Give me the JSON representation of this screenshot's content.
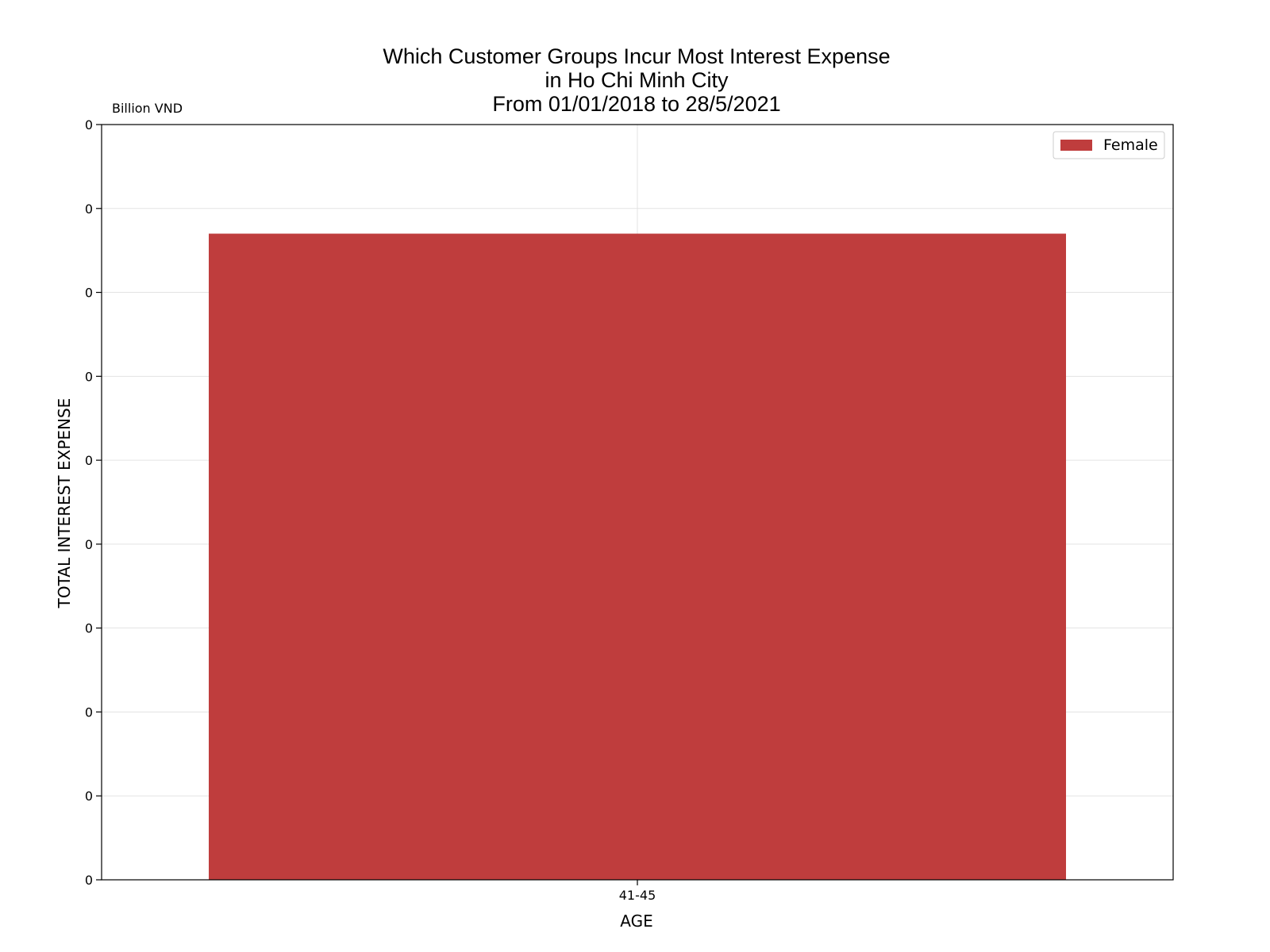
{
  "chart_data": {
    "type": "bar",
    "title_lines": [
      "Which Customer Groups Incur Most Interest Expense",
      "in Ho Chi Minh City",
      "From 01/01/2018 to 28/5/2021"
    ],
    "unit_label": "Billion VND",
    "xlabel": "AGE",
    "ylabel": "TOTAL INTEREST EXPENSE",
    "categories": [
      "41-45"
    ],
    "series": [
      {
        "name": "Female",
        "color": "#bf3d3d",
        "values": [
          0.77
        ]
      }
    ],
    "ylim": [
      0,
      0.9
    ],
    "y_ticks": [
      0,
      0.1,
      0.2,
      0.3,
      0.4,
      0.5,
      0.6,
      0.7,
      0.8,
      0.9
    ],
    "y_tick_labels": [
      "0",
      "0",
      "0",
      "0",
      "0",
      "0",
      "0",
      "0",
      "0",
      "0"
    ],
    "grid": true,
    "legend_position": "top-right"
  }
}
